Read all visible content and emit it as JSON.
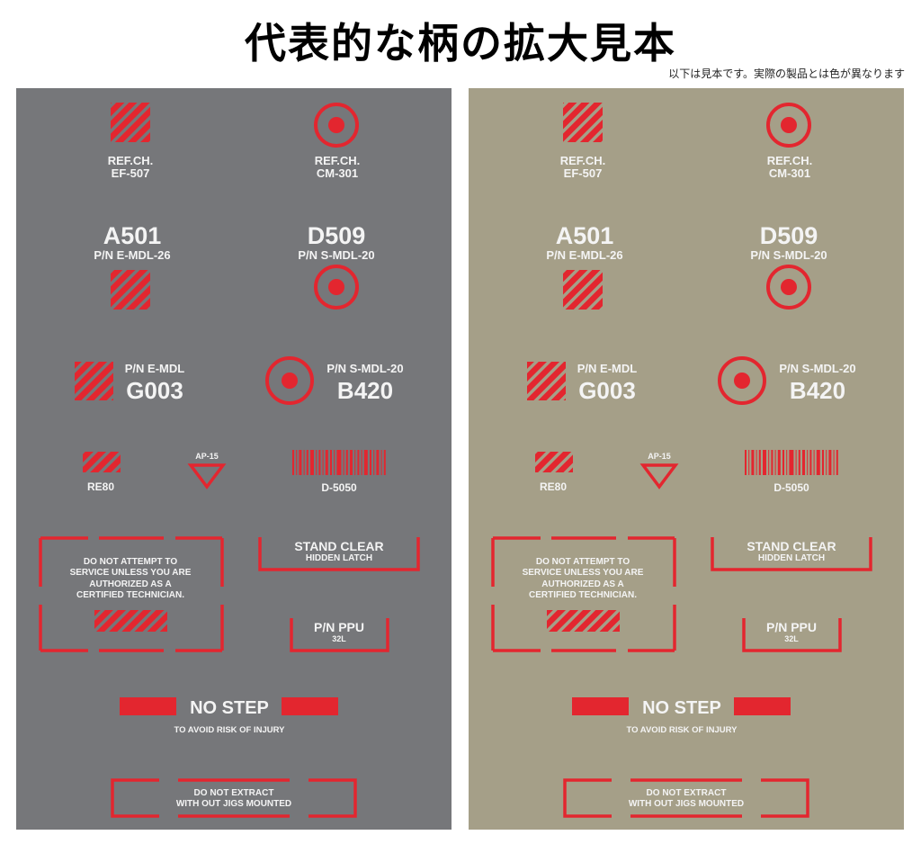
{
  "header": {
    "title": "代表的な柄の拡大見本",
    "note": "以下は見本です。実際の製品とは色が異なります"
  },
  "panels": [
    {
      "name": "gray",
      "background": "#76777a"
    },
    {
      "name": "tan",
      "background": "#a59f88"
    }
  ],
  "colors": {
    "accent": "#e3262f",
    "text": "#f4f4f4"
  },
  "decals": {
    "ref_ef": {
      "line1": "REF.CH.",
      "line2": "EF-507",
      "icon": "hatch-square-icon"
    },
    "ref_cm": {
      "line1": "REF.CH.",
      "line2": "CM-301",
      "icon": "target-circle-icon"
    },
    "a501": {
      "code": "A501",
      "pn": "P/N E-MDL-26"
    },
    "d509": {
      "code": "D509",
      "pn": "P/N S-MDL-20"
    },
    "g003": {
      "pn": "P/N E-MDL",
      "code": "G003"
    },
    "b420": {
      "pn": "P/N S-MDL-20",
      "code": "B420"
    },
    "re80": {
      "label": "RE80"
    },
    "ap15": {
      "label": "AP-15",
      "icon": "warning-triangle-icon"
    },
    "d5050": {
      "label": "D-5050",
      "icon": "barcode-icon"
    },
    "service": {
      "lines": [
        "DO NOT ATTEMPT TO",
        "SERVICE UNLESS YOU ARE",
        "AUTHORIZED AS A",
        "CERTIFIED TECHNICIAN."
      ]
    },
    "stand_clear": {
      "title": "STAND CLEAR",
      "sub": "HIDDEN LATCH"
    },
    "ppu": {
      "title": "P/N PPU",
      "sub": "32L"
    },
    "no_step": {
      "title": "NO STEP",
      "sub": "TO AVOID RISK OF INJURY"
    },
    "extract": {
      "lines": [
        "DO NOT EXTRACT",
        "WITH OUT JIGS MOUNTED"
      ]
    }
  }
}
